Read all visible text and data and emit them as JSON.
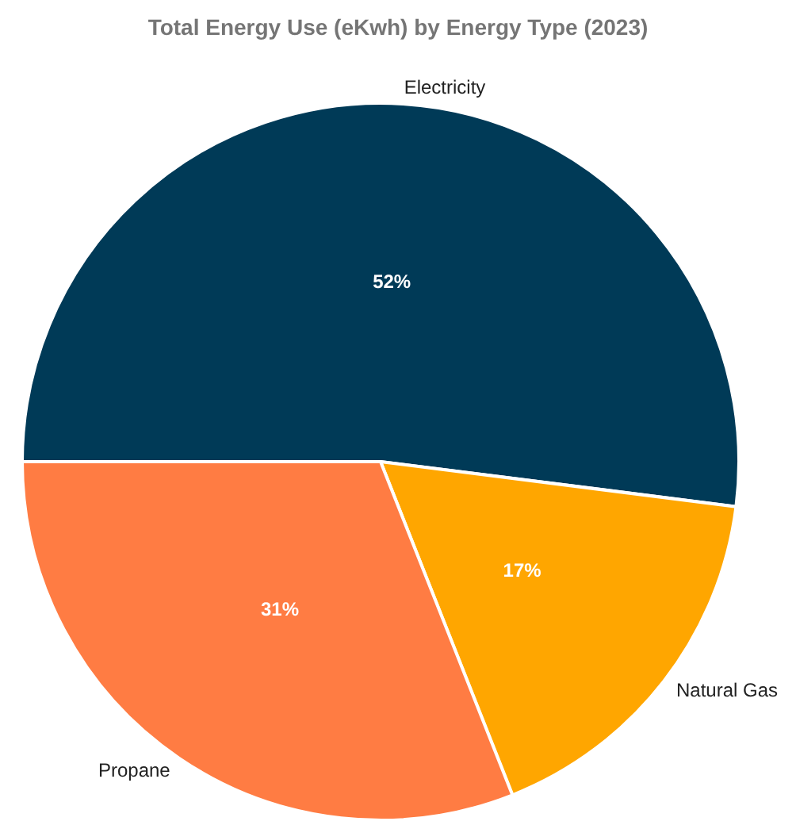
{
  "chart_data": {
    "type": "pie",
    "title": "Total Energy Use (eKwh) by Energy Type (2023)",
    "categories": [
      "Electricity",
      "Natural Gas",
      "Propane"
    ],
    "values": [
      52,
      17,
      31
    ],
    "colors": [
      "#003a57",
      "#ffa600",
      "#ff7c43"
    ],
    "value_labels": [
      "52%",
      "17%",
      "31%"
    ],
    "legend": false
  }
}
